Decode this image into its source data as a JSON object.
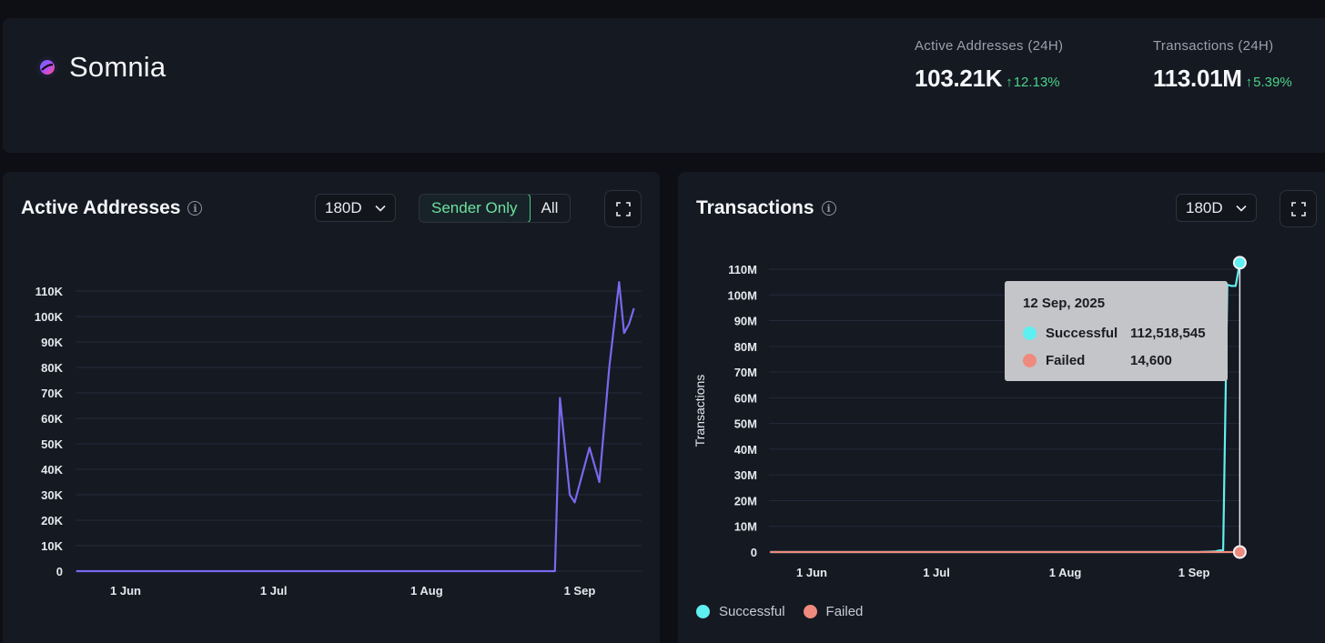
{
  "header": {
    "project_name": "Somnia",
    "stats": [
      {
        "label": "Active Addresses (24H)",
        "value": "103.21K",
        "change": "12.13%"
      },
      {
        "label": "Transactions (24H)",
        "value": "113.01M",
        "change": "5.39%"
      }
    ]
  },
  "active_addresses_card": {
    "title": "Active Addresses",
    "range": "180D",
    "toggle": {
      "sender_only": "Sender Only",
      "all": "All",
      "selected": "Sender Only"
    }
  },
  "transactions_card": {
    "title": "Transactions",
    "range": "180D",
    "tooltip": {
      "date": "12 Sep, 2025",
      "rows": [
        {
          "label": "Successful",
          "value": "112,518,545"
        },
        {
          "label": "Failed",
          "value": "14,600"
        }
      ]
    },
    "legend": [
      "Successful",
      "Failed"
    ]
  },
  "colors": {
    "accent_green": "#4bd38a",
    "active_line": "#7b68ee",
    "successful": "#5ef0f0",
    "failed": "#ef8a7e"
  },
  "chart_data": [
    {
      "type": "line",
      "title": "Active Addresses",
      "y_ticks": [
        "0",
        "10K",
        "20K",
        "30K",
        "40K",
        "50K",
        "60K",
        "70K",
        "80K",
        "90K",
        "100K",
        "110K"
      ],
      "x_ticks": [
        "1 Jun",
        "1 Jul",
        "1 Aug",
        "1 Sep"
      ],
      "ylim": [
        0,
        110000
      ],
      "grid": true,
      "series": [
        {
          "x": [
            "2025-05-22",
            "2025-08-27",
            "2025-08-28",
            "2025-08-30",
            "2025-08-31",
            "2025-09-03",
            "2025-09-05",
            "2025-09-07",
            "2025-09-09",
            "2025-09-10",
            "2025-09-11",
            "2025-09-12"
          ],
          "values": [
            0,
            0,
            68000,
            30000,
            27000,
            48500,
            35000,
            80000,
            113500,
            93500,
            97000,
            103200
          ]
        }
      ]
    },
    {
      "type": "line",
      "title": "Transactions",
      "ylabel": "Transactions",
      "y_ticks": [
        "0",
        "10M",
        "20M",
        "30M",
        "40M",
        "50M",
        "60M",
        "70M",
        "80M",
        "90M",
        "100M",
        "110M"
      ],
      "x_ticks": [
        "1 Jun",
        "1 Jul",
        "1 Aug",
        "1 Sep"
      ],
      "ylim": [
        0,
        110000000
      ],
      "grid": true,
      "legend": "bottom-left",
      "series": [
        {
          "name": "Successful",
          "x": [
            "2025-05-22",
            "2025-09-02",
            "2025-09-06",
            "2025-09-07",
            "2025-09-08",
            "2025-09-09",
            "2025-09-10",
            "2025-09-11",
            "2025-09-12"
          ],
          "values": [
            0,
            0,
            200000,
            600000,
            700000,
            104000000,
            103500000,
            103500000,
            112518545
          ]
        },
        {
          "name": "Failed",
          "x": [
            "2025-05-22",
            "2025-09-12"
          ],
          "values": [
            0,
            14600
          ]
        }
      ]
    }
  ]
}
